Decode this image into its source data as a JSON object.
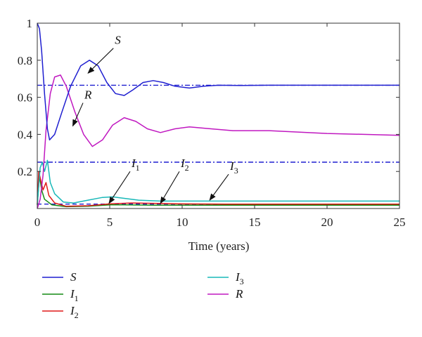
{
  "chart_data": {
    "type": "line",
    "xlabel": "Time (years)",
    "ylabel": "",
    "xlim": [
      0,
      25
    ],
    "ylim": [
      0,
      1
    ],
    "x_ticks": [
      "0",
      "5",
      "10",
      "15",
      "20",
      "25"
    ],
    "y_ticks": [
      {
        "value": 1,
        "label": "1"
      },
      {
        "value": 0.8,
        "label": "0.8"
      },
      {
        "value": 0.6,
        "label": "0.6"
      },
      {
        "value": 0.4,
        "label": "0.4"
      },
      {
        "value": 0.2,
        "label": "0.2"
      }
    ],
    "series": [
      {
        "key": "S",
        "name": "S",
        "sub": "",
        "color": "#1f1fd0",
        "points": [
          [
            0,
            1.0
          ],
          [
            0.15,
            0.97
          ],
          [
            0.3,
            0.85
          ],
          [
            0.5,
            0.62
          ],
          [
            0.7,
            0.43
          ],
          [
            0.85,
            0.37
          ],
          [
            1.2,
            0.4
          ],
          [
            1.7,
            0.52
          ],
          [
            2.3,
            0.66
          ],
          [
            3.0,
            0.77
          ],
          [
            3.6,
            0.8
          ],
          [
            4.2,
            0.77
          ],
          [
            4.8,
            0.68
          ],
          [
            5.4,
            0.62
          ],
          [
            6.0,
            0.61
          ],
          [
            6.6,
            0.64
          ],
          [
            7.3,
            0.68
          ],
          [
            8.0,
            0.69
          ],
          [
            8.7,
            0.68
          ],
          [
            9.5,
            0.66
          ],
          [
            10.5,
            0.65
          ],
          [
            11.5,
            0.66
          ],
          [
            12.5,
            0.665
          ],
          [
            14,
            0.664
          ],
          [
            16,
            0.665
          ],
          [
            20,
            0.665
          ],
          [
            25,
            0.665
          ]
        ]
      },
      {
        "key": "I1",
        "name": "I",
        "sub": "1",
        "color": "#138a13",
        "points": [
          [
            0,
            0.02
          ],
          [
            0.15,
            0.18
          ],
          [
            0.3,
            0.1
          ],
          [
            0.5,
            0.05
          ],
          [
            1.0,
            0.02
          ],
          [
            2,
            0.01
          ],
          [
            3.5,
            0.012
          ],
          [
            5,
            0.02
          ],
          [
            6,
            0.02
          ],
          [
            8,
            0.018
          ],
          [
            12,
            0.018
          ],
          [
            25,
            0.018
          ]
        ]
      },
      {
        "key": "I2",
        "name": "I",
        "sub": "2",
        "color": "#e01818",
        "points": [
          [
            0,
            0.02
          ],
          [
            0.1,
            0.2
          ],
          [
            0.25,
            0.15
          ],
          [
            0.4,
            0.1
          ],
          [
            0.6,
            0.14
          ],
          [
            0.8,
            0.07
          ],
          [
            1.2,
            0.03
          ],
          [
            2,
            0.012
          ],
          [
            3.5,
            0.015
          ],
          [
            5,
            0.025
          ],
          [
            6.5,
            0.03
          ],
          [
            8,
            0.028
          ],
          [
            10,
            0.025
          ],
          [
            13,
            0.024
          ],
          [
            25,
            0.024
          ]
        ]
      },
      {
        "key": "I3",
        "name": "I",
        "sub": "3",
        "color": "#18b8b8",
        "points": [
          [
            0,
            0.02
          ],
          [
            0.2,
            0.22
          ],
          [
            0.35,
            0.25
          ],
          [
            0.5,
            0.2
          ],
          [
            0.7,
            0.26
          ],
          [
            0.9,
            0.14
          ],
          [
            1.2,
            0.08
          ],
          [
            1.8,
            0.035
          ],
          [
            2.5,
            0.03
          ],
          [
            3.5,
            0.045
          ],
          [
            4.5,
            0.06
          ],
          [
            5.2,
            0.063
          ],
          [
            6,
            0.055
          ],
          [
            7,
            0.045
          ],
          [
            8.5,
            0.04
          ],
          [
            10,
            0.04
          ],
          [
            13,
            0.04
          ],
          [
            25,
            0.04
          ]
        ]
      },
      {
        "key": "R",
        "name": "R",
        "sub": "",
        "color": "#c018c0",
        "points": [
          [
            0,
            0.0
          ],
          [
            0.2,
            0.05
          ],
          [
            0.4,
            0.18
          ],
          [
            0.6,
            0.42
          ],
          [
            0.9,
            0.62
          ],
          [
            1.2,
            0.71
          ],
          [
            1.6,
            0.72
          ],
          [
            2.0,
            0.66
          ],
          [
            2.6,
            0.52
          ],
          [
            3.2,
            0.4
          ],
          [
            3.8,
            0.335
          ],
          [
            4.5,
            0.37
          ],
          [
            5.2,
            0.45
          ],
          [
            6.0,
            0.49
          ],
          [
            6.8,
            0.47
          ],
          [
            7.6,
            0.43
          ],
          [
            8.5,
            0.41
          ],
          [
            9.5,
            0.43
          ],
          [
            10.5,
            0.44
          ],
          [
            12,
            0.43
          ],
          [
            13.5,
            0.42
          ],
          [
            16,
            0.42
          ],
          [
            20,
            0.405
          ],
          [
            25,
            0.395
          ]
        ]
      }
    ],
    "reference_lines": [
      {
        "y": 0.665,
        "color": "#1f1fd0",
        "style": "dash-dot"
      },
      {
        "y": 0.25,
        "color": "#1f1fd0",
        "style": "dash-dot"
      },
      {
        "y": 0.024,
        "color": "#1f1fd0",
        "style": "dashed"
      }
    ],
    "annotations": [
      {
        "name": "S",
        "sub": "",
        "tip": [
          3.5,
          0.73
        ],
        "label_pos": [
          5.45,
          0.88
        ]
      },
      {
        "name": "R",
        "sub": "",
        "tip": [
          2.45,
          0.445
        ],
        "label_pos": [
          3.35,
          0.585
        ]
      },
      {
        "name": "I",
        "sub": "1",
        "tip": [
          4.95,
          0.028
        ],
        "label_pos": [
          6.6,
          0.215
        ]
      },
      {
        "name": "I",
        "sub": "2",
        "tip": [
          8.5,
          0.028
        ],
        "label_pos": [
          10.0,
          0.215
        ]
      },
      {
        "name": "I",
        "sub": "3",
        "tip": [
          11.9,
          0.045
        ],
        "label_pos": [
          13.4,
          0.2
        ]
      }
    ],
    "legend": {
      "placement": "bottom",
      "columns": [
        [
          "S",
          "I1",
          "I2"
        ],
        [
          "I3",
          "R"
        ]
      ]
    },
    "grid": false
  }
}
